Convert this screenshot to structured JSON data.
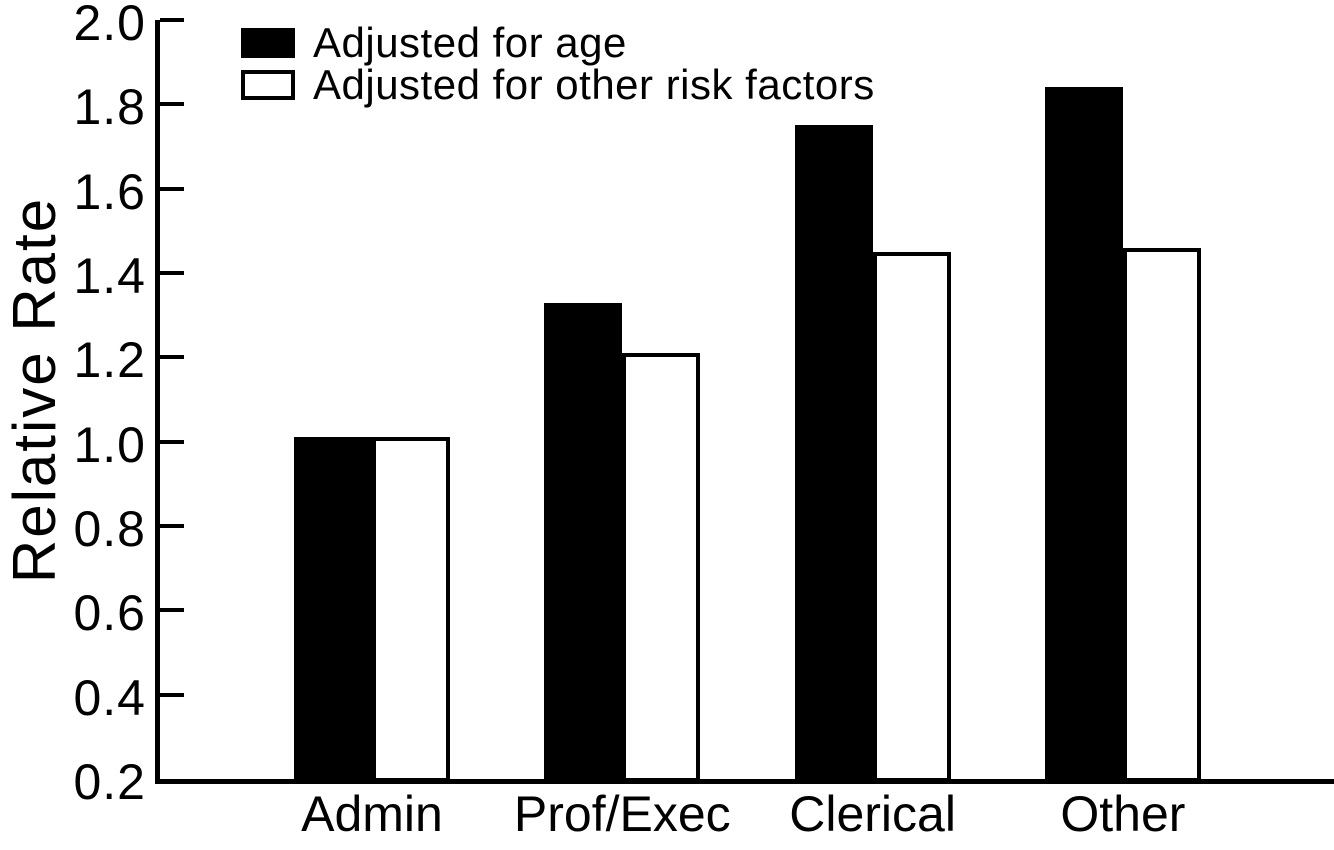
{
  "chart_data": {
    "type": "bar",
    "title": "",
    "xlabel": "",
    "ylabel": "Relative Rate",
    "categories": [
      "Admin",
      "Prof/Exec",
      "Clerical",
      "Other"
    ],
    "series": [
      {
        "name": "Adjusted for age",
        "style": "solid-black",
        "fill": "#000000",
        "values": [
          1.01,
          1.33,
          1.75,
          1.84
        ]
      },
      {
        "name": "Adjusted for other risk factors",
        "style": "outlined-white",
        "fill": "#ffffff",
        "stroke": "#000000",
        "values": [
          1.01,
          1.21,
          1.45,
          1.46
        ]
      }
    ],
    "ylim": [
      0.2,
      2.0
    ],
    "yticks": [
      0.2,
      0.4,
      0.6,
      0.8,
      1.0,
      1.2,
      1.4,
      1.6,
      1.8,
      2.0
    ],
    "ytick_format_decimals": 1,
    "grid": false,
    "legend_position": "top-left",
    "axis_color": "#000000",
    "background_color": "#ffffff"
  }
}
